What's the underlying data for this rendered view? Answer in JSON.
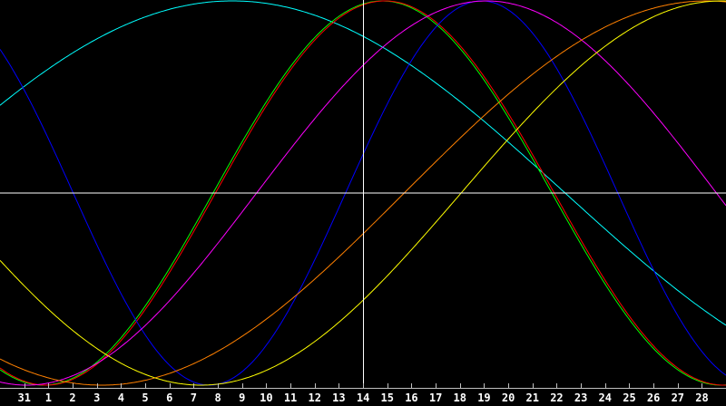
{
  "chart_data": {
    "type": "line",
    "title": "",
    "xlabel": "",
    "ylabel": "",
    "categories": [
      "31",
      "1",
      "2",
      "3",
      "4",
      "5",
      "6",
      "7",
      "8",
      "9",
      "10",
      "11",
      "12",
      "13",
      "14",
      "15",
      "16",
      "17",
      "18",
      "19",
      "20",
      "21",
      "22",
      "23",
      "24",
      "25",
      "26",
      "27",
      "28"
    ],
    "current_day": "14",
    "ylim": [
      -1,
      1
    ],
    "grid": false,
    "background": "#000000",
    "axis_color": "#c0c0c0",
    "crosshair_color": "#ffffff",
    "series": [
      {
        "color": "#00ffff",
        "period_days": 55,
        "peak_day": "8.6"
      },
      {
        "color": "#00ff00",
        "period_days": 28,
        "peak_day": "14.8"
      },
      {
        "color": "#ff0000",
        "period_days": 28,
        "peak_day": "14.9"
      },
      {
        "color": "#0000ff",
        "period_days": 22.5,
        "peak_day": "18.9"
      },
      {
        "color": "#ff00ff",
        "period_days": 38,
        "peak_day": "19.1"
      },
      {
        "color": "#ff8000",
        "period_days": 50,
        "peak_day": "28.2"
      },
      {
        "color": "#ffff00",
        "period_days": 43,
        "peak_day": "28.8"
      }
    ]
  }
}
